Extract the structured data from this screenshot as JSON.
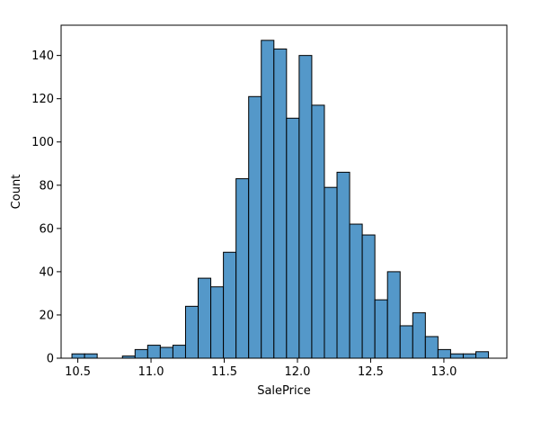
{
  "chart_data": {
    "type": "bar",
    "title": "",
    "xlabel": "SalePrice",
    "ylabel": "Count",
    "xlim": [
      10.386,
      13.43
    ],
    "ylim": [
      0,
      154
    ],
    "xticks": [
      "10.5",
      "11.0",
      "11.5",
      "12.0",
      "12.5",
      "13.0"
    ],
    "yticks": [
      "0",
      "20",
      "40",
      "60",
      "80",
      "100",
      "120",
      "140"
    ],
    "grid": false,
    "legend": "none",
    "bar_color": "#5498c9",
    "bar_edge_color": "#000000",
    "bin_start": 10.46,
    "bin_width": 0.0862,
    "values": [
      2,
      2,
      0,
      0,
      1,
      4,
      6,
      5,
      6,
      24,
      37,
      33,
      49,
      83,
      121,
      147,
      143,
      111,
      140,
      117,
      79,
      86,
      62,
      57,
      27,
      40,
      15,
      21,
      10,
      4,
      2,
      2,
      3
    ]
  }
}
